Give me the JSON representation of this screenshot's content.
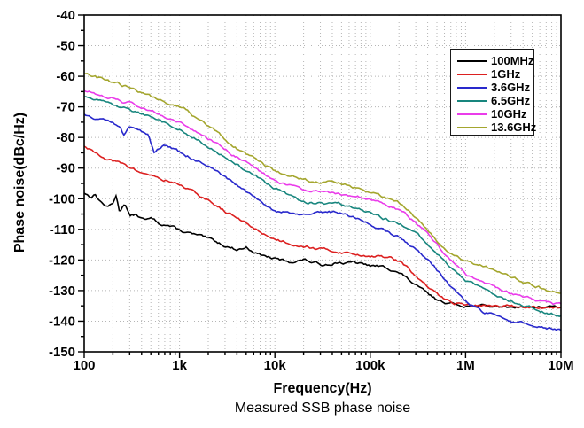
{
  "chart_data": {
    "type": "line",
    "caption": "Measured SSB phase noise",
    "xlabel": "Frequency(Hz)",
    "ylabel": "Phase noise(dBc/Hz)",
    "x_scale": "log",
    "x_range": [
      100,
      10000000
    ],
    "y_range": [
      -150,
      -40
    ],
    "y_major_step": 10,
    "y_minor_step": 5,
    "x_ticks": [
      {
        "value": 100,
        "label": "100"
      },
      {
        "value": 1000,
        "label": "1k"
      },
      {
        "value": 10000,
        "label": "10k"
      },
      {
        "value": 100000,
        "label": "100k"
      },
      {
        "value": 1000000,
        "label": "1M"
      },
      {
        "value": 10000000,
        "label": "10M"
      }
    ],
    "grid": {
      "style": "dotted",
      "color": "#b5b5b5",
      "horizontal": "major",
      "vertical": "minor"
    },
    "legend_position": "top-right",
    "noise_db": 0.45,
    "noise_seed": 13,
    "series": [
      {
        "name": "100MHz",
        "color": "#000000",
        "points": [
          [
            100,
            -98
          ],
          [
            115,
            -99.3
          ],
          [
            130,
            -98.6
          ],
          [
            150,
            -101
          ],
          [
            175,
            -102.8
          ],
          [
            200,
            -101.5
          ],
          [
            215,
            -98.8
          ],
          [
            235,
            -104.3
          ],
          [
            265,
            -101.2
          ],
          [
            300,
            -105.6
          ],
          [
            350,
            -105.2
          ],
          [
            430,
            -107
          ],
          [
            520,
            -106.6
          ],
          [
            620,
            -108
          ],
          [
            760,
            -108.6
          ],
          [
            900,
            -109.6
          ],
          [
            1000,
            -110.4
          ],
          [
            1300,
            -111.4
          ],
          [
            1600,
            -112.2
          ],
          [
            2200,
            -113.6
          ],
          [
            3200,
            -115.6
          ],
          [
            4000,
            -116.6
          ],
          [
            5000,
            -115.9
          ],
          [
            6000,
            -117.2
          ],
          [
            6800,
            -118
          ],
          [
            8000,
            -118.8
          ],
          [
            10000,
            -119.7
          ],
          [
            13000,
            -120.4
          ],
          [
            15000,
            -120.6
          ],
          [
            20000,
            -119.9
          ],
          [
            26000,
            -121
          ],
          [
            32000,
            -121.6
          ],
          [
            40000,
            -121
          ],
          [
            47000,
            -120.6
          ],
          [
            56000,
            -121.2
          ],
          [
            68000,
            -120.8
          ],
          [
            82000,
            -121.4
          ],
          [
            100000,
            -121.9
          ],
          [
            130000,
            -122.2
          ],
          [
            150000,
            -122.6
          ],
          [
            180000,
            -123.4
          ],
          [
            220000,
            -125
          ],
          [
            320000,
            -129
          ],
          [
            470000,
            -132.6
          ],
          [
            680000,
            -134.2
          ],
          [
            1000000,
            -134.9
          ],
          [
            2000000,
            -135.2
          ],
          [
            4000000,
            -135.3
          ],
          [
            7000000,
            -135.4
          ],
          [
            10000000,
            -135.4
          ]
        ]
      },
      {
        "name": "1GHz",
        "color": "#dc2020",
        "points": [
          [
            100,
            -83.2
          ],
          [
            130,
            -85
          ],
          [
            160,
            -86.2
          ],
          [
            200,
            -87.6
          ],
          [
            250,
            -88.6
          ],
          [
            320,
            -90.1
          ],
          [
            400,
            -91.6
          ],
          [
            500,
            -92.1
          ],
          [
            620,
            -93.6
          ],
          [
            800,
            -94.4
          ],
          [
            1000,
            -95.2
          ],
          [
            1500,
            -98.4
          ],
          [
            2200,
            -101.5
          ],
          [
            3200,
            -104.6
          ],
          [
            4700,
            -107.6
          ],
          [
            6800,
            -110.6
          ],
          [
            10000,
            -113.2
          ],
          [
            15000,
            -114.6
          ],
          [
            22000,
            -115.6
          ],
          [
            32000,
            -116.6
          ],
          [
            47000,
            -117.3
          ],
          [
            68000,
            -118.1
          ],
          [
            100000,
            -118.6
          ],
          [
            130000,
            -118.9
          ],
          [
            160000,
            -119.2
          ],
          [
            200000,
            -120.6
          ],
          [
            250000,
            -122.8
          ],
          [
            320000,
            -126.1
          ],
          [
            400000,
            -128.8
          ],
          [
            470000,
            -130.6
          ],
          [
            560000,
            -132.2
          ],
          [
            680000,
            -133.6
          ],
          [
            1000000,
            -134.7
          ],
          [
            1500000,
            -135
          ],
          [
            2200000,
            -135.1
          ],
          [
            3200000,
            -135.2
          ],
          [
            4700000,
            -135.3
          ],
          [
            6800000,
            -135.3
          ],
          [
            10000000,
            -135.4
          ]
        ]
      },
      {
        "name": "3.6GHz",
        "color": "#2929cc",
        "points": [
          [
            100,
            -72.2
          ],
          [
            150,
            -74.1
          ],
          [
            200,
            -75.2
          ],
          [
            240,
            -77.2
          ],
          [
            260,
            -79.2
          ],
          [
            290,
            -76.9
          ],
          [
            320,
            -76.9
          ],
          [
            400,
            -77.8
          ],
          [
            470,
            -78.6
          ],
          [
            540,
            -84.6
          ],
          [
            600,
            -83.2
          ],
          [
            680,
            -82.6
          ],
          [
            800,
            -83.4
          ],
          [
            1000,
            -84.7
          ],
          [
            1500,
            -87.4
          ],
          [
            2200,
            -90.4
          ],
          [
            3200,
            -93.8
          ],
          [
            4700,
            -97.1
          ],
          [
            6800,
            -100.9
          ],
          [
            8500,
            -103
          ],
          [
            10000,
            -104.1
          ],
          [
            13000,
            -104.7
          ],
          [
            16000,
            -104.9
          ],
          [
            22000,
            -105.4
          ],
          [
            27000,
            -104.9
          ],
          [
            32000,
            -104.7
          ],
          [
            40000,
            -104.4
          ],
          [
            47000,
            -104.7
          ],
          [
            56000,
            -105.3
          ],
          [
            68000,
            -106.1
          ],
          [
            82000,
            -107.2
          ],
          [
            100000,
            -108.4
          ],
          [
            130000,
            -109.8
          ],
          [
            160000,
            -111.2
          ],
          [
            220000,
            -113.2
          ],
          [
            320000,
            -117.1
          ],
          [
            470000,
            -122.1
          ],
          [
            680000,
            -128.1
          ],
          [
            1000000,
            -133.6
          ],
          [
            1500000,
            -136.9
          ],
          [
            2200000,
            -138.7
          ],
          [
            3200000,
            -140.1
          ],
          [
            4700000,
            -141.2
          ],
          [
            6800000,
            -142.1
          ],
          [
            10000000,
            -142.8
          ]
        ]
      },
      {
        "name": "6.5GHz",
        "color": "#18867e",
        "points": [
          [
            100,
            -66.9
          ],
          [
            150,
            -68.3
          ],
          [
            220,
            -69.9
          ],
          [
            320,
            -71.3
          ],
          [
            470,
            -73.3
          ],
          [
            680,
            -75.3
          ],
          [
            1000,
            -77.6
          ],
          [
            1500,
            -80.6
          ],
          [
            2200,
            -83.6
          ],
          [
            3200,
            -87.1
          ],
          [
            4700,
            -90.1
          ],
          [
            6800,
            -93.1
          ],
          [
            10000,
            -96.6
          ],
          [
            13000,
            -98.3
          ],
          [
            16000,
            -99.6
          ],
          [
            20000,
            -100.9
          ],
          [
            26000,
            -101.4
          ],
          [
            32000,
            -101.7
          ],
          [
            40000,
            -101.3
          ],
          [
            47000,
            -101.3
          ],
          [
            56000,
            -102.1
          ],
          [
            68000,
            -102.9
          ],
          [
            82000,
            -103.9
          ],
          [
            100000,
            -104.9
          ],
          [
            130000,
            -106
          ],
          [
            160000,
            -107
          ],
          [
            220000,
            -108.7
          ],
          [
            320000,
            -112.1
          ],
          [
            470000,
            -117.1
          ],
          [
            680000,
            -122.1
          ],
          [
            1000000,
            -126.6
          ],
          [
            1500000,
            -129.6
          ],
          [
            2200000,
            -131.6
          ],
          [
            3200000,
            -133.6
          ],
          [
            4700000,
            -135.4
          ],
          [
            6800000,
            -136.9
          ],
          [
            10000000,
            -138.1
          ]
        ]
      },
      {
        "name": "10GHz",
        "color": "#ea3cea",
        "points": [
          [
            100,
            -64.5
          ],
          [
            150,
            -66.1
          ],
          [
            200,
            -67.1
          ],
          [
            250,
            -68.6
          ],
          [
            290,
            -67.9
          ],
          [
            320,
            -68.9
          ],
          [
            470,
            -70.9
          ],
          [
            680,
            -72.9
          ],
          [
            1000,
            -75.1
          ],
          [
            1500,
            -77.9
          ],
          [
            2200,
            -81.1
          ],
          [
            3200,
            -84.6
          ],
          [
            4700,
            -87.6
          ],
          [
            6800,
            -90.6
          ],
          [
            10000,
            -94.1
          ],
          [
            13000,
            -95.4
          ],
          [
            16000,
            -96.2
          ],
          [
            22000,
            -97.1
          ],
          [
            32000,
            -97.9
          ],
          [
            47000,
            -98.3
          ],
          [
            68000,
            -98.9
          ],
          [
            100000,
            -100.3
          ],
          [
            130000,
            -101.2
          ],
          [
            160000,
            -102.1
          ],
          [
            220000,
            -104.3
          ],
          [
            320000,
            -108.6
          ],
          [
            470000,
            -114.1
          ],
          [
            680000,
            -119.6
          ],
          [
            1000000,
            -124.8
          ],
          [
            1500000,
            -127.6
          ],
          [
            2200000,
            -129.6
          ],
          [
            3200000,
            -131.3
          ],
          [
            4700000,
            -132.8
          ],
          [
            6800000,
            -133.9
          ],
          [
            10000000,
            -134.8
          ]
        ]
      },
      {
        "name": "13.6GHz",
        "color": "#a4a62e",
        "points": [
          [
            100,
            -59
          ],
          [
            150,
            -60.9
          ],
          [
            220,
            -62.4
          ],
          [
            320,
            -63.9
          ],
          [
            470,
            -66.1
          ],
          [
            680,
            -68.4
          ],
          [
            900,
            -69.9
          ],
          [
            1100,
            -69.7
          ],
          [
            1300,
            -71.9
          ],
          [
            1500,
            -73.9
          ],
          [
            2200,
            -77.1
          ],
          [
            3200,
            -81.3
          ],
          [
            4700,
            -85.1
          ],
          [
            6800,
            -87.8
          ],
          [
            8500,
            -89.6
          ],
          [
            10000,
            -90.9
          ],
          [
            13000,
            -91.9
          ],
          [
            16000,
            -92.6
          ],
          [
            22000,
            -93.9
          ],
          [
            32000,
            -94.7
          ],
          [
            40000,
            -94.4
          ],
          [
            47000,
            -94.9
          ],
          [
            56000,
            -95.4
          ],
          [
            68000,
            -96.1
          ],
          [
            82000,
            -96.9
          ],
          [
            100000,
            -97.8
          ],
          [
            130000,
            -99.1
          ],
          [
            160000,
            -100
          ],
          [
            200000,
            -101.2
          ],
          [
            250000,
            -103.3
          ],
          [
            320000,
            -107.1
          ],
          [
            400000,
            -110.4
          ],
          [
            470000,
            -113.1
          ],
          [
            560000,
            -115.4
          ],
          [
            680000,
            -117.6
          ],
          [
            820000,
            -118.9
          ],
          [
            1000000,
            -119.9
          ],
          [
            1500000,
            -121.9
          ],
          [
            2200000,
            -123.9
          ],
          [
            3200000,
            -125.9
          ],
          [
            4700000,
            -127.7
          ],
          [
            6800000,
            -129.6
          ],
          [
            10000000,
            -131.4
          ]
        ]
      }
    ]
  }
}
